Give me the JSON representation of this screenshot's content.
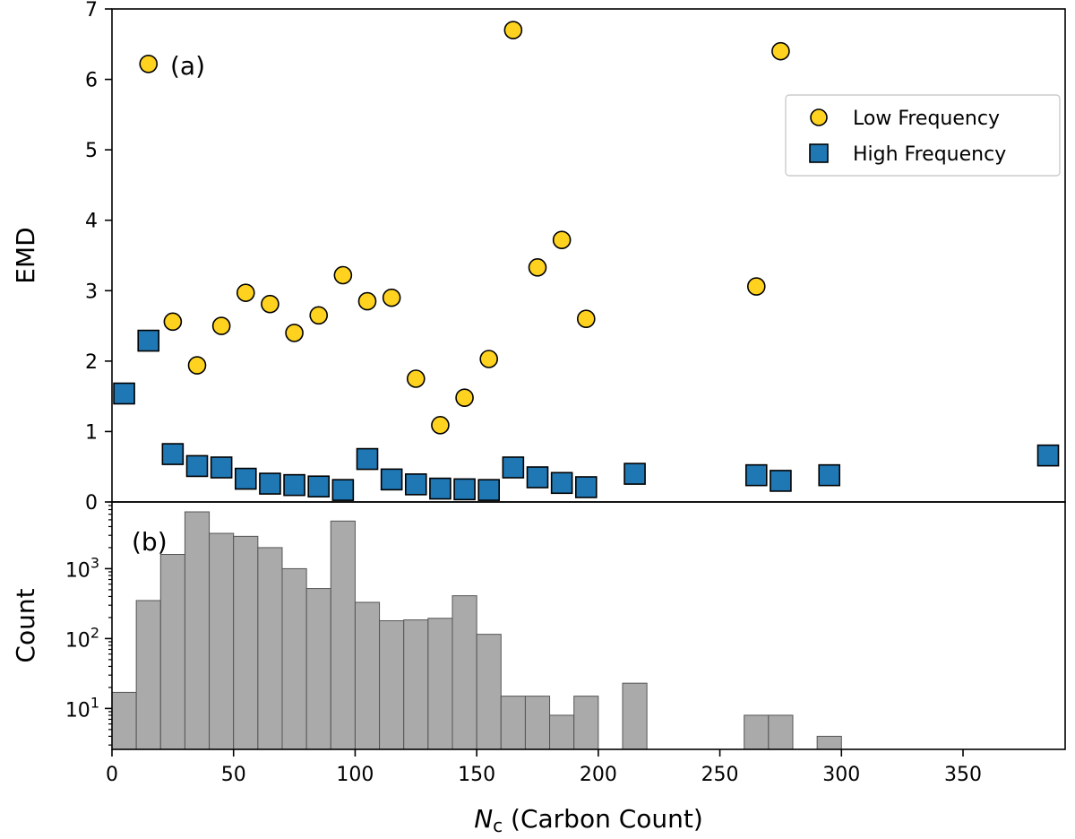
{
  "chart_data": [
    {
      "panel": "a",
      "type": "scatter",
      "panel_label": "(a)",
      "ylabel": "EMD",
      "xlim": [
        0,
        392
      ],
      "ylim": [
        0,
        7
      ],
      "yticks": [
        "0",
        "1",
        "2",
        "3",
        "4",
        "5",
        "6",
        "7"
      ],
      "legend_position": "upper-right",
      "series": [
        {
          "name": "Low Frequency",
          "marker": "circle",
          "color": "#ffd21f",
          "x": [
            15,
            25,
            35,
            45,
            55,
            65,
            75,
            85,
            95,
            105,
            115,
            125,
            135,
            145,
            155,
            165,
            175,
            185,
            195,
            265,
            275
          ],
          "y": [
            6.22,
            2.56,
            1.94,
            2.5,
            2.97,
            2.81,
            2.4,
            2.65,
            3.22,
            2.85,
            2.9,
            1.75,
            1.09,
            1.48,
            2.03,
            6.7,
            3.33,
            3.72,
            2.6,
            3.06,
            6.4
          ]
        },
        {
          "name": "High Frequency",
          "marker": "square",
          "color": "#1f77b4",
          "x": [
            5,
            15,
            25,
            35,
            45,
            55,
            65,
            75,
            85,
            95,
            105,
            115,
            125,
            135,
            145,
            155,
            165,
            175,
            185,
            195,
            215,
            265,
            275,
            295,
            385
          ],
          "y": [
            1.54,
            2.29,
            0.68,
            0.51,
            0.49,
            0.33,
            0.26,
            0.24,
            0.22,
            0.17,
            0.61,
            0.32,
            0.25,
            0.19,
            0.18,
            0.17,
            0.49,
            0.35,
            0.27,
            0.21,
            0.4,
            0.38,
            0.3,
            0.38,
            0.66
          ]
        }
      ]
    },
    {
      "panel": "b",
      "type": "bar",
      "panel_label": "(b)",
      "ylabel": "Count",
      "xlabel_var": "N",
      "xlabel_sub": "c",
      "xlabel_rest": " (Carbon Count)",
      "xlim": [
        0,
        392
      ],
      "y_scale": "log",
      "ylim": [
        2.6,
        9000
      ],
      "xticks": [
        0,
        50,
        100,
        150,
        200,
        250,
        300,
        350
      ],
      "yticks": [
        {
          "base": "10",
          "exp": "1",
          "value": 10
        },
        {
          "base": "10",
          "exp": "2",
          "value": 100
        },
        {
          "base": "10",
          "exp": "3",
          "value": 1000
        }
      ],
      "bar_color": "#aaaaaa",
      "bin_width": 10,
      "bins": [
        {
          "x": 0,
          "count": 17
        },
        {
          "x": 10,
          "count": 350
        },
        {
          "x": 20,
          "count": 1600
        },
        {
          "x": 30,
          "count": 6500
        },
        {
          "x": 40,
          "count": 3200
        },
        {
          "x": 50,
          "count": 2900
        },
        {
          "x": 60,
          "count": 2000
        },
        {
          "x": 70,
          "count": 1000
        },
        {
          "x": 80,
          "count": 520
        },
        {
          "x": 90,
          "count": 4800
        },
        {
          "x": 100,
          "count": 330
        },
        {
          "x": 110,
          "count": 180
        },
        {
          "x": 120,
          "count": 185
        },
        {
          "x": 130,
          "count": 195
        },
        {
          "x": 140,
          "count": 410
        },
        {
          "x": 150,
          "count": 115
        },
        {
          "x": 160,
          "count": 15
        },
        {
          "x": 170,
          "count": 15
        },
        {
          "x": 180,
          "count": 8
        },
        {
          "x": 190,
          "count": 15
        },
        {
          "x": 210,
          "count": 23
        },
        {
          "x": 260,
          "count": 8
        },
        {
          "x": 270,
          "count": 8
        },
        {
          "x": 290,
          "count": 4
        }
      ]
    }
  ]
}
